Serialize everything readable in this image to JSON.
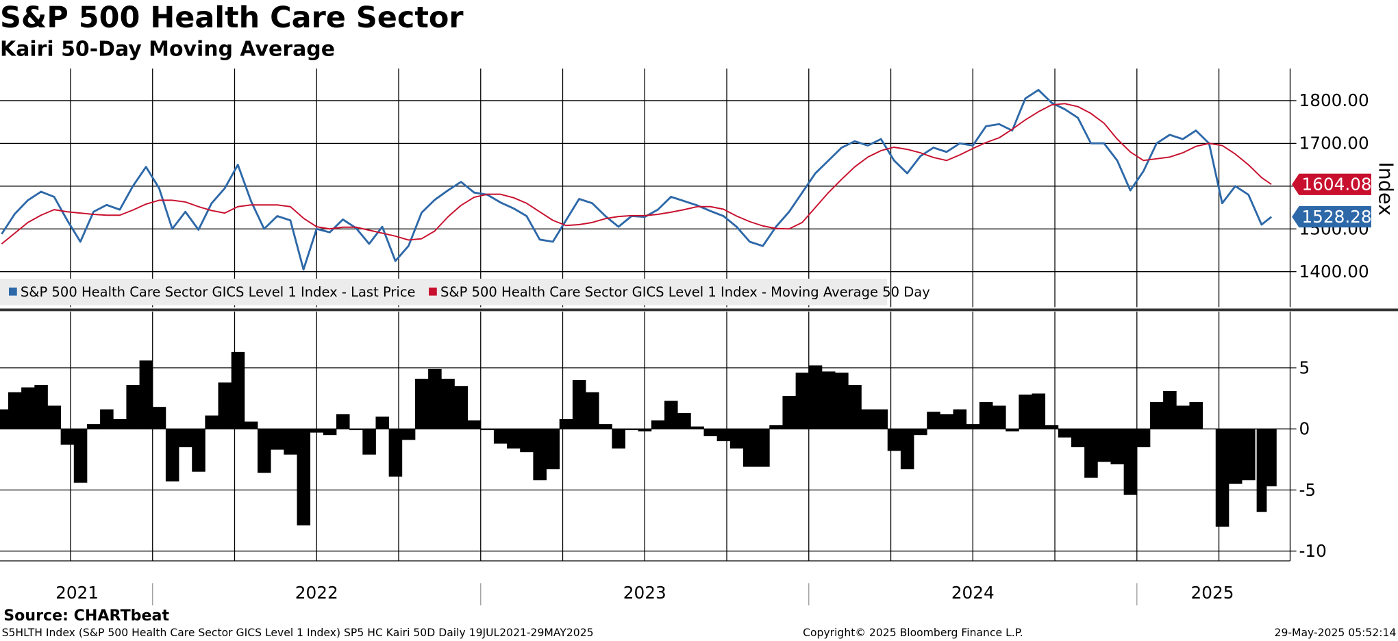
{
  "chart_data": [
    {
      "type": "line",
      "title": "S&P 500 Health Care Sector",
      "subtitle": "Kairi 50-Day Moving Average",
      "y_label": "Index",
      "legend": "bottom-left",
      "grid": true,
      "xlim": [
        2021.535,
        2025.467
      ],
      "xgrid": [
        2021.75,
        2022,
        2022.25,
        2022.5,
        2022.75,
        2023,
        2023.25,
        2023.5,
        2023.75,
        2024,
        2024.25,
        2024.5,
        2024.75,
        2025,
        2025.25
      ],
      "ylim": [
        1317,
        1875
      ],
      "yticks": [
        {
          "value": 1400,
          "label": "1400.00"
        },
        {
          "value": 1500,
          "label": "1500.00"
        },
        {
          "value": 1600,
          "label": "1600.00"
        },
        {
          "value": 1700,
          "label": "1700.00"
        },
        {
          "value": 1800,
          "label": "1800.00"
        }
      ],
      "x": [
        2021.54,
        2021.58,
        2021.62,
        2021.66,
        2021.7,
        2021.74,
        2021.78,
        2021.82,
        2021.86,
        2021.9,
        2021.94,
        2021.98,
        2022.02,
        2022.06,
        2022.1,
        2022.14,
        2022.18,
        2022.22,
        2022.26,
        2022.3,
        2022.34,
        2022.38,
        2022.42,
        2022.46,
        2022.5,
        2022.54,
        2022.58,
        2022.62,
        2022.66,
        2022.7,
        2022.74,
        2022.78,
        2022.82,
        2022.86,
        2022.9,
        2022.94,
        2022.98,
        2023.02,
        2023.06,
        2023.1,
        2023.14,
        2023.18,
        2023.22,
        2023.26,
        2023.3,
        2023.34,
        2023.38,
        2023.42,
        2023.46,
        2023.5,
        2023.54,
        2023.58,
        2023.62,
        2023.66,
        2023.7,
        2023.74,
        2023.78,
        2023.82,
        2023.86,
        2023.9,
        2023.94,
        2023.98,
        2024.02,
        2024.06,
        2024.1,
        2024.14,
        2024.18,
        2024.22,
        2024.26,
        2024.3,
        2024.34,
        2024.38,
        2024.42,
        2024.46,
        2024.5,
        2024.54,
        2024.58,
        2024.62,
        2024.66,
        2024.7,
        2024.74,
        2024.78,
        2024.82,
        2024.86,
        2024.9,
        2024.94,
        2024.98,
        2025.02,
        2025.06,
        2025.1,
        2025.14,
        2025.18,
        2025.22,
        2025.26,
        2025.3,
        2025.34,
        2025.38,
        2025.41
      ],
      "series": [
        {
          "name": "S&P 500 Health Care Sector GICS Level 1 Index - Last Price",
          "color": "#2d68a8",
          "last_value": 1528.28,
          "values": [
            1488,
            1535,
            1567,
            1587,
            1575,
            1520,
            1470,
            1540,
            1556,
            1545,
            1600,
            1645,
            1595,
            1500,
            1540,
            1498,
            1560,
            1595,
            1650,
            1565,
            1500,
            1530,
            1520,
            1405,
            1500,
            1492,
            1522,
            1502,
            1465,
            1505,
            1425,
            1460,
            1538,
            1568,
            1590,
            1610,
            1585,
            1580,
            1562,
            1548,
            1530,
            1475,
            1470,
            1520,
            1570,
            1560,
            1530,
            1505,
            1530,
            1528,
            1545,
            1575,
            1565,
            1555,
            1542,
            1530,
            1505,
            1470,
            1460,
            1505,
            1540,
            1585,
            1630,
            1660,
            1690,
            1705,
            1695,
            1710,
            1660,
            1630,
            1670,
            1690,
            1680,
            1700,
            1695,
            1740,
            1745,
            1730,
            1805,
            1825,
            1795,
            1780,
            1760,
            1700,
            1700,
            1660,
            1590,
            1635,
            1700,
            1720,
            1710,
            1730,
            1700,
            1560,
            1600,
            1580,
            1510,
            1528.28
          ]
        },
        {
          "name": "S&P 500 Health Care Sector GICS Level 1 Index - Moving Average 50 Day",
          "color": "#c8102e",
          "last_value": 1604.08,
          "values": [
            1465,
            1490,
            1515,
            1532,
            1545,
            1540,
            1537,
            1534,
            1532,
            1532,
            1544,
            1558,
            1567,
            1567,
            1563,
            1552,
            1543,
            1537,
            1552,
            1556,
            1556,
            1556,
            1552,
            1525,
            1505,
            1500,
            1504,
            1504,
            1497,
            1490,
            1483,
            1474,
            1477,
            1495,
            1528,
            1555,
            1574,
            1581,
            1581,
            1573,
            1560,
            1540,
            1520,
            1508,
            1510,
            1515,
            1524,
            1529,
            1531,
            1531,
            1534,
            1539,
            1545,
            1552,
            1552,
            1546,
            1530,
            1517,
            1507,
            1501,
            1500,
            1515,
            1550,
            1585,
            1616,
            1645,
            1668,
            1683,
            1691,
            1686,
            1678,
            1667,
            1660,
            1673,
            1688,
            1702,
            1713,
            1733,
            1755,
            1774,
            1790,
            1793,
            1786,
            1770,
            1747,
            1710,
            1680,
            1660,
            1664,
            1668,
            1678,
            1693,
            1700,
            1695,
            1675,
            1650,
            1620,
            1604.08
          ]
        }
      ]
    },
    {
      "type": "bar",
      "color": "#000000",
      "grid": true,
      "xlim": [
        2021.535,
        2025.467
      ],
      "xgrid": [
        2021.75,
        2022,
        2022.25,
        2022.5,
        2022.75,
        2023,
        2023.25,
        2023.5,
        2023.75,
        2024,
        2024.25,
        2024.5,
        2024.75,
        2025,
        2025.25
      ],
      "xticks": [
        {
          "value": 2021.77,
          "label": "2021"
        },
        {
          "value": 2022.5,
          "label": "2022"
        },
        {
          "value": 2023.5,
          "label": "2023"
        },
        {
          "value": 2024.5,
          "label": "2024"
        },
        {
          "value": 2025.23,
          "label": "2025"
        }
      ],
      "ylim": [
        -10.8,
        9.6
      ],
      "yticks": [
        -10,
        -5,
        0,
        5
      ],
      "x": [
        2021.54,
        2021.58,
        2021.62,
        2021.66,
        2021.7,
        2021.74,
        2021.78,
        2021.82,
        2021.86,
        2021.9,
        2021.94,
        2021.98,
        2022.02,
        2022.06,
        2022.1,
        2022.14,
        2022.18,
        2022.22,
        2022.26,
        2022.3,
        2022.34,
        2022.38,
        2022.42,
        2022.46,
        2022.5,
        2022.54,
        2022.58,
        2022.62,
        2022.66,
        2022.7,
        2022.74,
        2022.78,
        2022.82,
        2022.86,
        2022.9,
        2022.94,
        2022.98,
        2023.02,
        2023.06,
        2023.1,
        2023.14,
        2023.18,
        2023.22,
        2023.26,
        2023.3,
        2023.34,
        2023.38,
        2023.42,
        2023.46,
        2023.5,
        2023.54,
        2023.58,
        2023.62,
        2023.66,
        2023.7,
        2023.74,
        2023.78,
        2023.82,
        2023.86,
        2023.9,
        2023.94,
        2023.98,
        2024.02,
        2024.06,
        2024.1,
        2024.14,
        2024.18,
        2024.22,
        2024.26,
        2024.3,
        2024.34,
        2024.38,
        2024.42,
        2024.46,
        2024.5,
        2024.54,
        2024.58,
        2024.62,
        2024.66,
        2024.7,
        2024.74,
        2024.78,
        2024.82,
        2024.86,
        2024.9,
        2024.94,
        2024.98,
        2025.02,
        2025.06,
        2025.1,
        2025.14,
        2025.18,
        2025.22,
        2025.26,
        2025.3,
        2025.34,
        2025.38,
        2025.41
      ],
      "values": [
        1.6,
        3.0,
        3.4,
        3.6,
        1.9,
        -1.3,
        -4.4,
        0.4,
        1.6,
        0.8,
        3.6,
        5.6,
        1.8,
        -4.3,
        -1.5,
        -3.5,
        1.1,
        3.8,
        6.3,
        0.6,
        -3.6,
        -1.7,
        -2.1,
        -7.9,
        -0.3,
        -0.5,
        1.2,
        -0.1,
        -2.1,
        1.0,
        -3.9,
        -0.9,
        4.1,
        4.9,
        4.1,
        3.5,
        0.7,
        -0.1,
        -1.2,
        -1.6,
        -1.9,
        -4.2,
        -3.3,
        0.8,
        4.0,
        3.0,
        0.4,
        -1.6,
        -0.1,
        -0.2,
        0.7,
        2.3,
        1.3,
        0.2,
        -0.6,
        -1.0,
        -1.6,
        -3.1,
        -3.1,
        0.3,
        2.7,
        4.6,
        5.2,
        4.7,
        4.6,
        3.6,
        1.6,
        1.6,
        -1.8,
        -3.3,
        -0.5,
        1.4,
        1.2,
        1.6,
        0.4,
        2.2,
        1.9,
        -0.2,
        2.8,
        2.9,
        0.3,
        -0.7,
        -1.5,
        -4.0,
        -2.7,
        -2.9,
        -5.4,
        -1.5,
        2.2,
        3.1,
        1.9,
        2.2,
        0,
        -8.0,
        -4.5,
        -4.2,
        -6.8,
        -4.7
      ]
    }
  ],
  "source": "Source: CHARTbeat",
  "footer": {
    "left": "S5HLTH Index (S&P 500 Health Care Sector GICS Level 1 Index) SP5 HC Kairi 50D  Daily 19JUL2021-29MAY2025",
    "center": "Copyright© 2025 Bloomberg Finance L.P.",
    "right": "29-May-2025 05:52:14"
  }
}
